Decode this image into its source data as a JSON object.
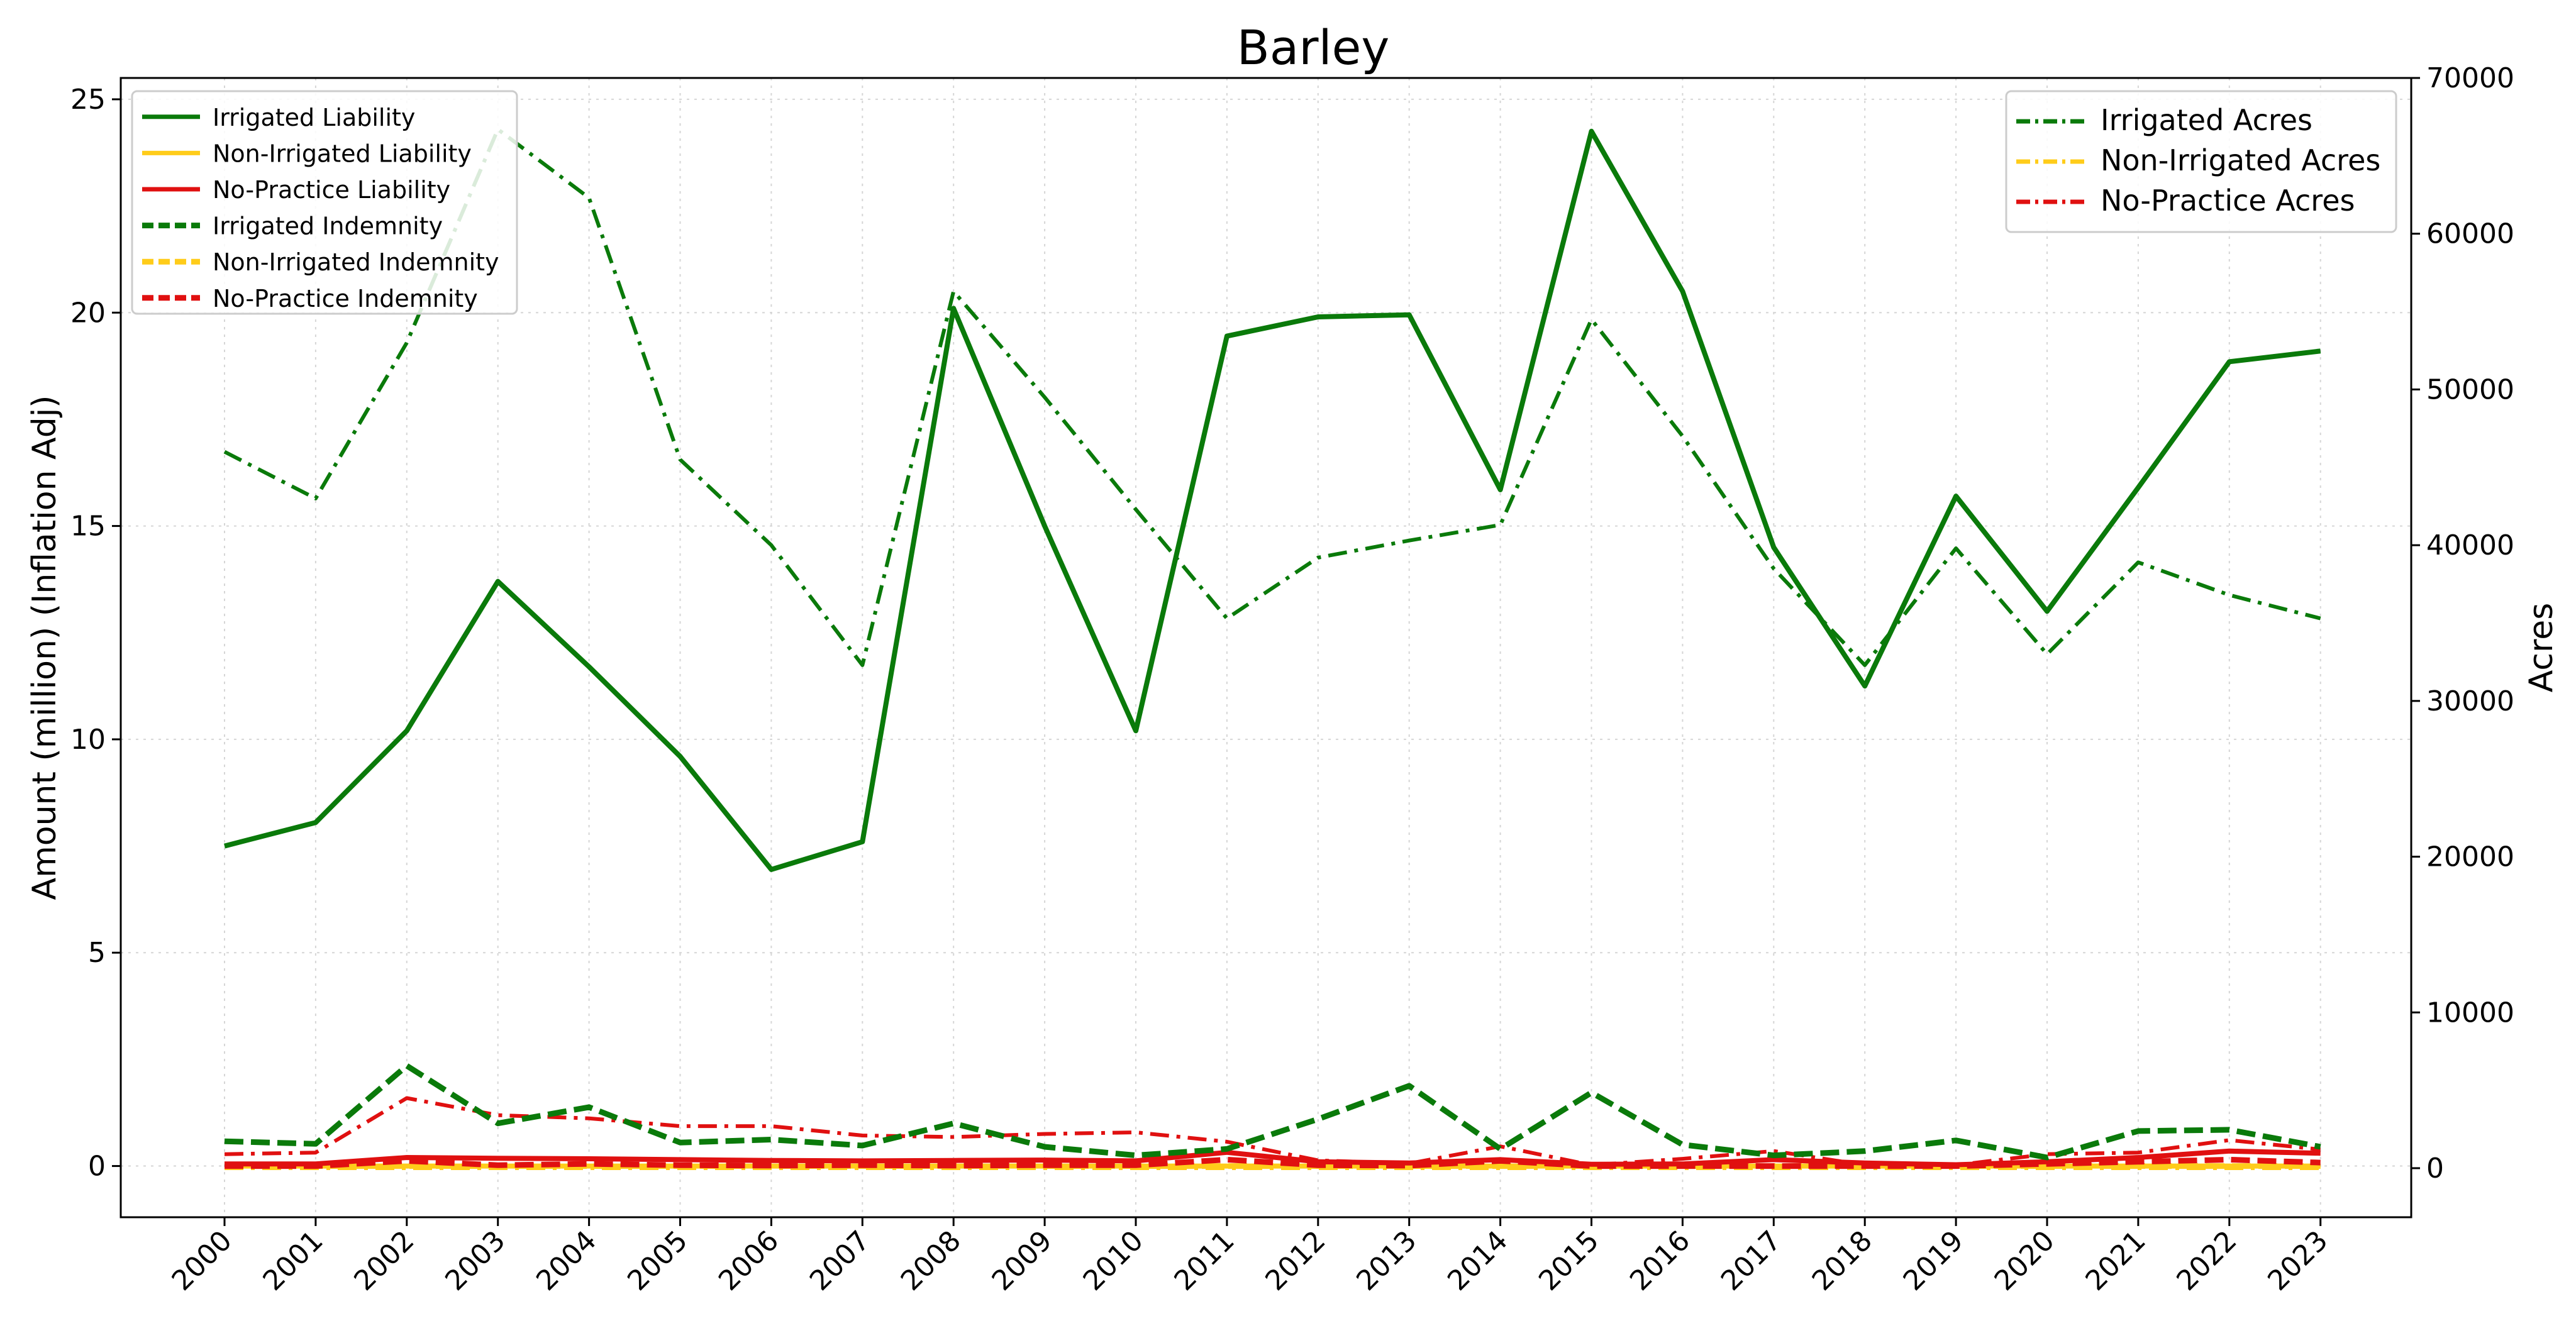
{
  "chart_data": {
    "type": "line",
    "title": "Barley",
    "ylabel": "Amount (million) (Inflation Adj)",
    "y2label": "Acres",
    "x": [
      "2000",
      "2001",
      "2002",
      "2003",
      "2004",
      "2005",
      "2006",
      "2007",
      "2008",
      "2009",
      "2010",
      "2011",
      "2012",
      "2013",
      "2014",
      "2015",
      "2016",
      "2017",
      "2018",
      "2019",
      "2020",
      "2021",
      "2022",
      "2023"
    ],
    "ylim": [
      -1.2,
      25.5
    ],
    "y2lim": [
      -3150,
      70000
    ],
    "yticks": [
      0,
      5,
      10,
      15,
      20,
      25
    ],
    "y2ticks": [
      0,
      10000,
      20000,
      30000,
      40000,
      50000,
      60000,
      70000
    ],
    "grid": true,
    "colors": {
      "irrigated": "#0a7a0a",
      "non_irrigated": "#ffcc1a",
      "no_practice": "#e01010"
    },
    "series_left": [
      {
        "name": "Irrigated Liability",
        "color": "#0a7a0a",
        "style": "solid",
        "values": [
          7.5,
          8.05,
          10.2,
          13.7,
          11.7,
          9.6,
          6.95,
          7.6,
          20.1,
          15.0,
          10.2,
          19.45,
          19.9,
          19.95,
          15.85,
          24.25,
          20.5,
          14.5,
          11.25,
          15.7,
          13.0,
          15.9,
          18.85,
          19.1
        ]
      },
      {
        "name": "Non-Irrigated Liability",
        "color": "#ffcc1a",
        "style": "solid",
        "values": [
          0,
          0,
          0,
          0,
          0,
          0,
          0,
          0,
          0,
          0,
          0,
          0,
          0,
          0,
          0,
          0,
          0,
          0,
          0,
          0,
          0,
          0,
          0,
          0
        ]
      },
      {
        "name": "No-Practice Liability",
        "color": "#e01010",
        "style": "solid",
        "values": [
          0.05,
          0.05,
          0.2,
          0.18,
          0.17,
          0.15,
          0.13,
          0.12,
          0.13,
          0.14,
          0.12,
          0.32,
          0.1,
          0.07,
          0.15,
          0.04,
          0.05,
          0.15,
          0.07,
          0.03,
          0.1,
          0.2,
          0.35,
          0.3
        ]
      },
      {
        "name": "Irrigated Indemnity",
        "color": "#0a7a0a",
        "style": "dashed",
        "values": [
          0.58,
          0.52,
          2.35,
          1.0,
          1.38,
          0.55,
          0.62,
          0.48,
          1.0,
          0.45,
          0.25,
          0.4,
          1.1,
          1.88,
          0.4,
          1.72,
          0.5,
          0.25,
          0.35,
          0.6,
          0.2,
          0.82,
          0.85,
          0.45
        ]
      },
      {
        "name": "Non-Irrigated Indemnity",
        "color": "#ffcc1a",
        "style": "dashed",
        "values": [
          0,
          0,
          0,
          0,
          0,
          0,
          0,
          0,
          0,
          0,
          0,
          0,
          0,
          0,
          0,
          0,
          0,
          0,
          0,
          0,
          0,
          0,
          0,
          0
        ]
      },
      {
        "name": "No-Practice Indemnity",
        "color": "#e01010",
        "style": "dashed",
        "values": [
          0.0,
          0.0,
          0.12,
          0.02,
          0.05,
          0.02,
          0.01,
          0.02,
          0.01,
          0.02,
          0.02,
          0.15,
          0.02,
          0.01,
          0.12,
          0.0,
          0.0,
          0.0,
          0.0,
          0.0,
          0.05,
          0.1,
          0.15,
          0.08
        ]
      }
    ],
    "series_right": [
      {
        "name": "Irrigated Acres",
        "color": "#0a7a0a",
        "style": "dashdot",
        "values": [
          46000,
          43000,
          53000,
          66700,
          62300,
          45500,
          40000,
          32300,
          56300,
          49500,
          42300,
          35300,
          39200,
          40300,
          41300,
          54500,
          47000,
          38500,
          32300,
          39800,
          33000,
          38900,
          36800,
          35300
        ]
      },
      {
        "name": "Non-Irrigated Acres",
        "color": "#ffcc1a",
        "style": "dashdot",
        "values": [
          0,
          0,
          0,
          0,
          0,
          0,
          0,
          0,
          0,
          0,
          0,
          0,
          0,
          0,
          0,
          0,
          0,
          0,
          0,
          0,
          0,
          0,
          0,
          0
        ]
      },
      {
        "name": "No-Practice Acres",
        "color": "#e01010",
        "style": "dashdot",
        "values": [
          900,
          1000,
          4500,
          3400,
          3200,
          2700,
          2700,
          2100,
          2000,
          2200,
          2300,
          1700,
          500,
          300,
          1400,
          200,
          600,
          1100,
          200,
          200,
          900,
          1000,
          1800,
          1200
        ]
      }
    ],
    "legend_left": "top-left",
    "legend_right": "top-right"
  }
}
